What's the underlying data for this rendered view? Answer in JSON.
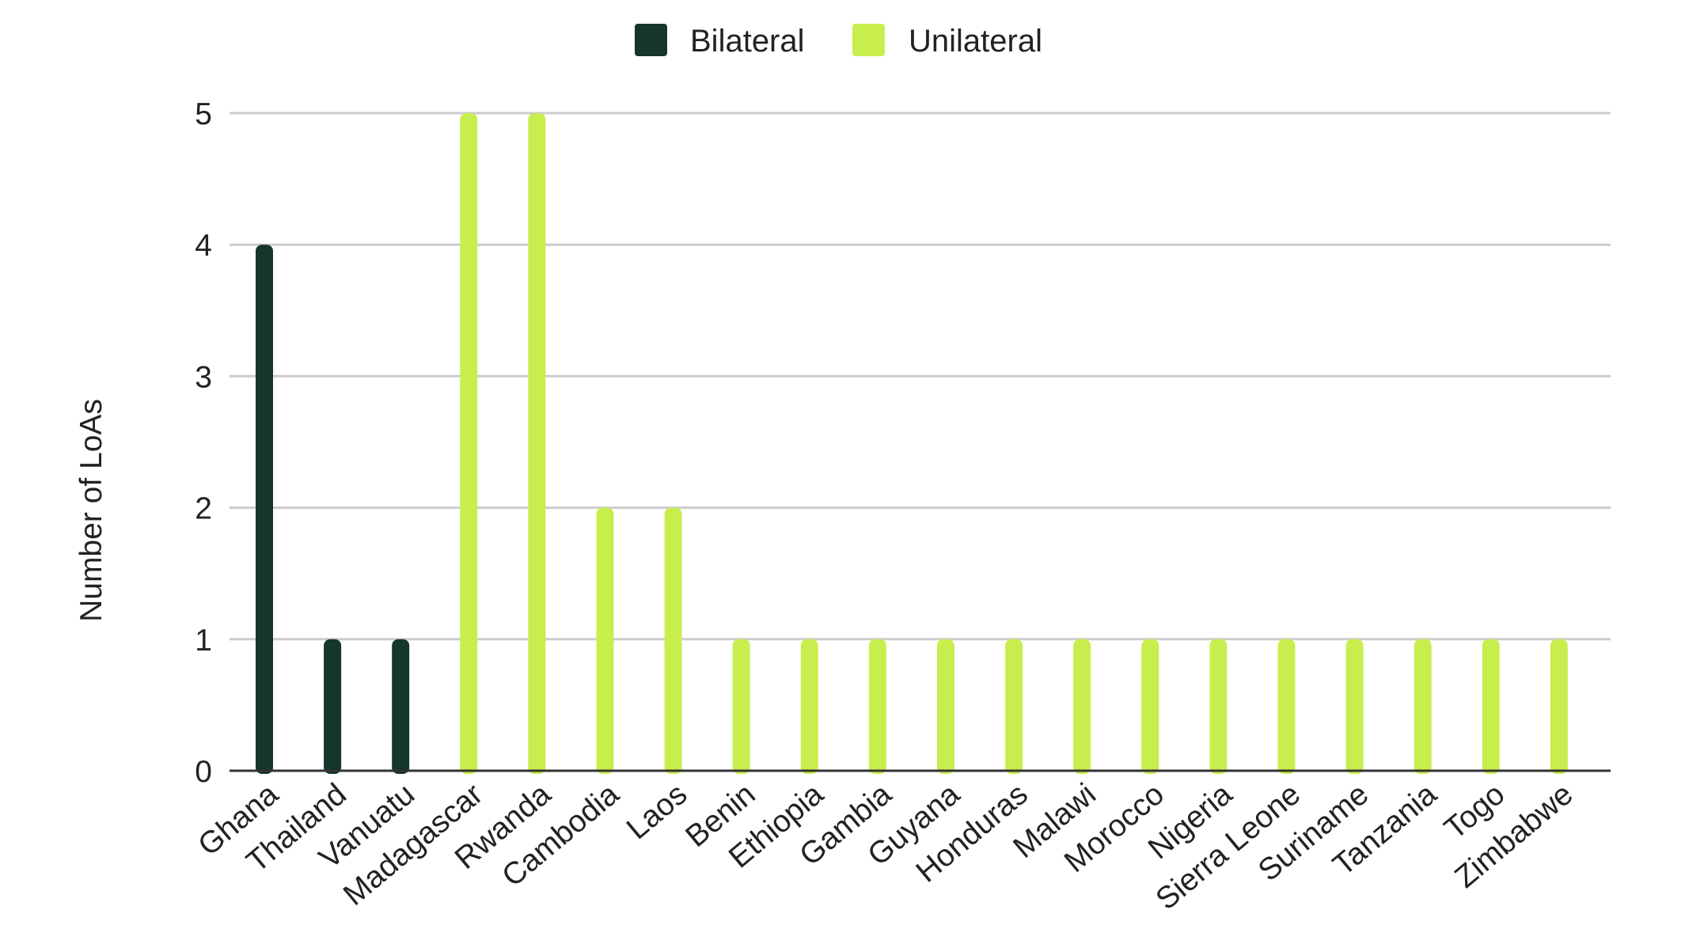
{
  "chart_data": {
    "type": "bar",
    "categories": [
      "Ghana",
      "Thailand",
      "Vanuatu",
      "Madagascar",
      "Rwanda",
      "Cambodia",
      "Laos",
      "Benin",
      "Ethiopia",
      "Gambia",
      "Guyana",
      "Honduras",
      "Malawi",
      "Morocco",
      "Nigeria",
      "Sierra Leone",
      "Suriname",
      "Tanzania",
      "Togo",
      "Zimbabwe"
    ],
    "series": [
      {
        "name": "Bilateral",
        "color": "#15362a",
        "values": [
          4,
          1,
          1,
          0,
          0,
          0,
          0,
          0,
          0,
          0,
          0,
          0,
          0,
          0,
          0,
          0,
          0,
          0,
          0,
          0
        ]
      },
      {
        "name": "Unilateral",
        "color": "#c8ee4d",
        "values": [
          0,
          0,
          0,
          5,
          5,
          2,
          2,
          1,
          1,
          1,
          1,
          1,
          1,
          1,
          1,
          1,
          1,
          1,
          1,
          1
        ]
      }
    ],
    "ylabel": "Number of LoAs",
    "xlabel": "",
    "ylim": [
      0,
      5
    ],
    "yticks": [
      0,
      1,
      2,
      3,
      4,
      5
    ],
    "grid": true,
    "legend": "top-center"
  }
}
